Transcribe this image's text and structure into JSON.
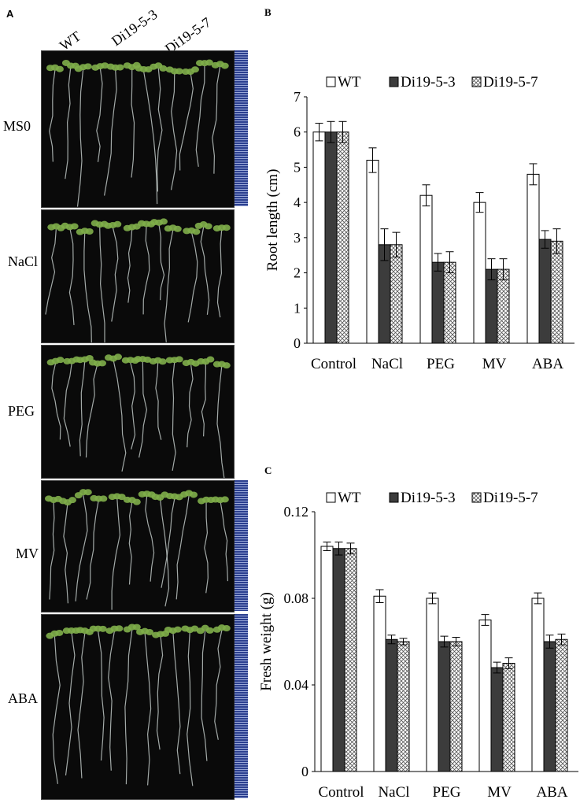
{
  "panel_a": {
    "letter": "A",
    "column_labels": [
      "WT",
      "Di19-5-3",
      "Di19-5-7"
    ],
    "rows": [
      {
        "label": "MS0"
      },
      {
        "label": "NaCl"
      },
      {
        "label": "PEG"
      },
      {
        "label": "MV"
      },
      {
        "label": "ABA"
      }
    ],
    "colors": {
      "background": "#0a0a0a",
      "leaf": "#7fae4a",
      "root": "#c9d2cf"
    }
  },
  "chart_data": [
    {
      "panel": "B",
      "type": "bar",
      "categories": [
        "Control",
        "NaCl",
        "PEG",
        "MV",
        "ABA"
      ],
      "series": [
        {
          "name": "WT",
          "values": [
            6.0,
            5.2,
            4.2,
            4.0,
            4.8
          ],
          "errors": [
            0.25,
            0.35,
            0.3,
            0.28,
            0.3
          ],
          "fill": "white"
        },
        {
          "name": "Di19-5-3",
          "values": [
            6.0,
            2.8,
            2.3,
            2.1,
            2.95
          ],
          "errors": [
            0.3,
            0.45,
            0.25,
            0.3,
            0.25
          ],
          "fill": "dark"
        },
        {
          "name": "Di19-5-7",
          "values": [
            6.0,
            2.8,
            2.3,
            2.1,
            2.9
          ],
          "errors": [
            0.3,
            0.35,
            0.3,
            0.3,
            0.35
          ],
          "fill": "hatch"
        }
      ],
      "xlabel": "",
      "ylabel": "Root length (cm)",
      "ylim": [
        0,
        7
      ],
      "yticks": [
        "0",
        "1",
        "2",
        "3",
        "4",
        "5",
        "6",
        "7"
      ],
      "legend_position": "top"
    },
    {
      "panel": "C",
      "type": "bar",
      "categories": [
        "Control",
        "NaCl",
        "PEG",
        "MV",
        "ABA"
      ],
      "series": [
        {
          "name": "WT",
          "values": [
            0.104,
            0.081,
            0.08,
            0.07,
            0.08
          ],
          "errors": [
            0.002,
            0.003,
            0.0025,
            0.0025,
            0.0025
          ],
          "fill": "white"
        },
        {
          "name": "Di19-5-3",
          "values": [
            0.103,
            0.061,
            0.06,
            0.048,
            0.06
          ],
          "errors": [
            0.003,
            0.002,
            0.0025,
            0.0025,
            0.003
          ],
          "fill": "dark"
        },
        {
          "name": "Di19-5-7",
          "values": [
            0.103,
            0.06,
            0.06,
            0.05,
            0.061
          ],
          "errors": [
            0.0025,
            0.0015,
            0.002,
            0.0025,
            0.0025
          ],
          "fill": "hatch"
        }
      ],
      "xlabel": "",
      "ylabel": "Fresh weight (g)",
      "ylim": [
        0,
        0.12
      ],
      "yticks": [
        "0",
        "0.04",
        "0.08",
        "0.12"
      ],
      "legend_position": "top"
    }
  ],
  "colors": {
    "dark_bar": "#3c3c3c",
    "hatch": "#555555"
  }
}
